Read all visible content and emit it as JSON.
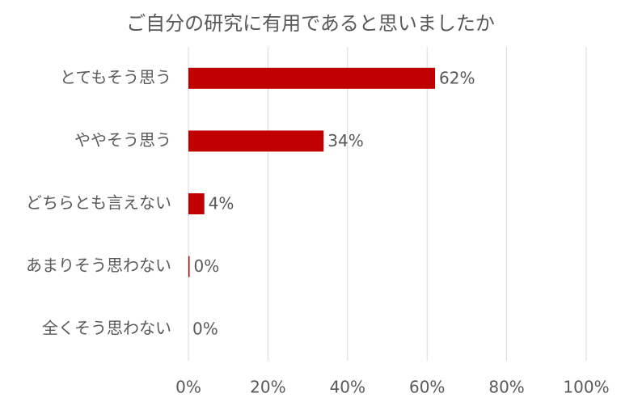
{
  "chart_data": {
    "type": "hbar",
    "title": "ご自分の研究に有用であると思いましたか",
    "categories": [
      "とてもそう思う",
      "ややそう思う",
      "どちらとも言えない",
      "あまりそう思わない",
      "全くそう思わない"
    ],
    "values": [
      62,
      34,
      4,
      0.3,
      0
    ],
    "value_labels": [
      "62%",
      "34%",
      "4%",
      "0%",
      "0%"
    ],
    "color": "#c00000",
    "xlim": [
      0,
      100
    ],
    "xticks": [
      {
        "value": 0,
        "label": "0%"
      },
      {
        "value": 20,
        "label": "20%"
      },
      {
        "value": 40,
        "label": "40%"
      },
      {
        "value": 60,
        "label": "60%"
      },
      {
        "value": 80,
        "label": "80%"
      },
      {
        "value": 100,
        "label": "100%"
      }
    ],
    "grid": true
  }
}
